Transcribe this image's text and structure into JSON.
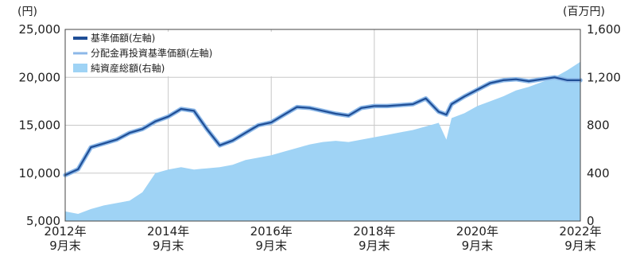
{
  "chart_data": {
    "type": "line",
    "title": "",
    "left_axis": {
      "unit": "(円)",
      "ylim": [
        5000,
        25000
      ],
      "ticks": [
        5000,
        10000,
        15000,
        20000,
        25000
      ],
      "tick_labels": [
        "5,000",
        "10,000",
        "15,000",
        "20,000",
        "25,000"
      ]
    },
    "right_axis": {
      "unit": "(百万円)",
      "ylim": [
        0,
        1600
      ],
      "ticks": [
        0,
        400,
        800,
        1200,
        1600
      ],
      "tick_labels": [
        "0",
        "400",
        "800",
        "1,200",
        "1,600"
      ]
    },
    "x_axis": {
      "ticks": [
        {
          "year": "2012年",
          "month": "9月末"
        },
        {
          "year": "2014年",
          "month": "9月末"
        },
        {
          "year": "2016年",
          "month": "9月末"
        },
        {
          "year": "2018年",
          "month": "9月末"
        },
        {
          "year": "2020年",
          "month": "9月末"
        },
        {
          "year": "2022年",
          "month": "9月末"
        }
      ]
    },
    "legend_position": "top-left",
    "x": [
      2012.75,
      2013.0,
      2013.25,
      2013.5,
      2013.75,
      2014.0,
      2014.25,
      2014.5,
      2014.75,
      2015.0,
      2015.25,
      2015.5,
      2015.75,
      2016.0,
      2016.25,
      2016.5,
      2016.75,
      2017.0,
      2017.25,
      2017.5,
      2017.75,
      2018.0,
      2018.25,
      2018.5,
      2018.75,
      2019.0,
      2019.25,
      2019.5,
      2019.75,
      2020.0,
      2020.15,
      2020.25,
      2020.5,
      2020.75,
      2021.0,
      2021.25,
      2021.5,
      2021.75,
      2022.0,
      2022.25,
      2022.5,
      2022.75
    ],
    "series": [
      {
        "name": "基準価額(左軸)",
        "axis": "left",
        "style": "line",
        "color": "#1f4e96",
        "values": [
          9800,
          10400,
          12700,
          13100,
          13500,
          14200,
          14600,
          15400,
          15900,
          16700,
          16500,
          14600,
          12900,
          13400,
          14200,
          15000,
          15300,
          16100,
          16900,
          16800,
          16500,
          16200,
          16000,
          16800,
          17000,
          17000,
          17100,
          17200,
          17800,
          16400,
          16100,
          17200,
          18000,
          18700,
          19400,
          19700,
          19800,
          19600,
          19800,
          20000,
          19700,
          19700
        ]
      },
      {
        "name": "分配金再投資基準価額(左軸)",
        "axis": "left",
        "style": "line",
        "color": "#8cb8e8",
        "values": [
          9800,
          10400,
          12700,
          13100,
          13500,
          14200,
          14600,
          15400,
          15900,
          16700,
          16500,
          14600,
          12900,
          13400,
          14200,
          15000,
          15300,
          16100,
          16900,
          16800,
          16500,
          16200,
          16000,
          16800,
          17000,
          17000,
          17100,
          17200,
          17800,
          16400,
          16100,
          17200,
          18000,
          18700,
          19400,
          19700,
          19800,
          19600,
          19800,
          20000,
          19700,
          19700
        ]
      },
      {
        "name": "純資産総額(右軸)",
        "axis": "right",
        "style": "area",
        "color": "#9fd3f5",
        "values": [
          80,
          60,
          100,
          130,
          150,
          170,
          240,
          400,
          430,
          450,
          430,
          440,
          450,
          470,
          510,
          530,
          550,
          580,
          610,
          640,
          660,
          670,
          660,
          680,
          700,
          720,
          740,
          760,
          790,
          820,
          680,
          860,
          900,
          960,
          1000,
          1040,
          1090,
          1120,
          1160,
          1200,
          1260,
          1330
        ]
      }
    ]
  }
}
